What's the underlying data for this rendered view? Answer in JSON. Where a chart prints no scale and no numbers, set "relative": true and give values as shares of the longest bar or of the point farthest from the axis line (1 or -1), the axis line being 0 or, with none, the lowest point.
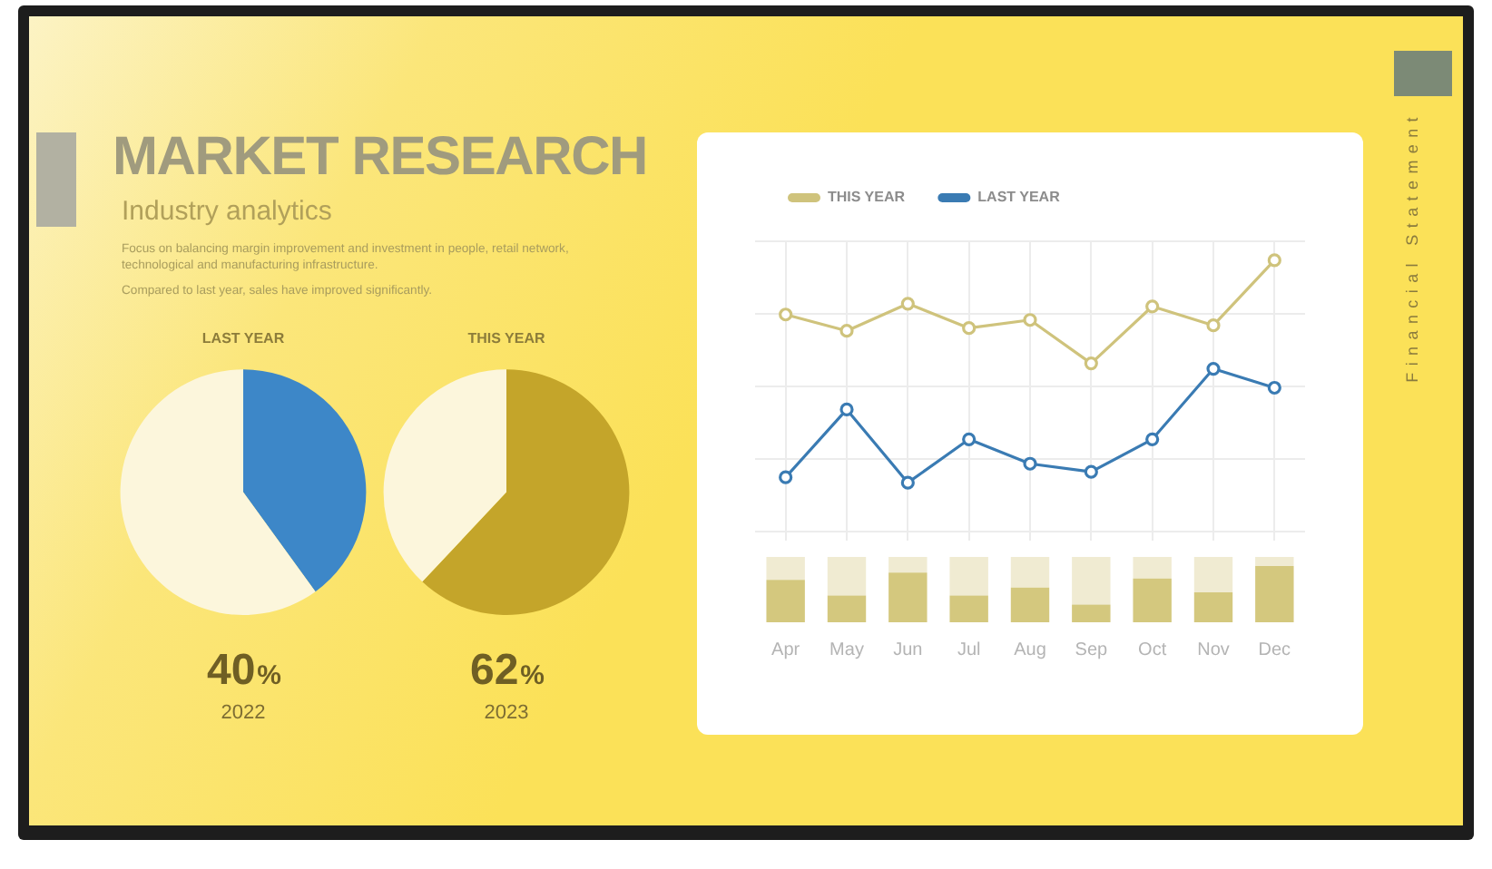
{
  "chart_data": [
    {
      "type": "other",
      "title": "MARKET RESEARCH",
      "subtitle": "Industry analytics",
      "annotations": [
        "Focus on balancing margin improvement and investment in people, retail network, technological and manufacturing infrastructure.",
        "Compared to last year, sales have improved significantly.",
        "Financial Statement"
      ]
    },
    {
      "type": "pie",
      "title": "LAST YEAR",
      "categories": [
        null,
        null
      ],
      "values": [
        40,
        60
      ],
      "colors": [
        "#3d87c8",
        "#fcf6dc"
      ],
      "annotations": [
        "40%",
        "2022"
      ]
    },
    {
      "type": "pie",
      "title": "THIS YEAR",
      "categories": [
        null,
        null
      ],
      "values": [
        62,
        38
      ],
      "colors": [
        "#c4a52a",
        "#fcf6dc"
      ],
      "annotations": [
        "62%",
        "2023"
      ]
    },
    {
      "type": "line",
      "relative": true,
      "categories": [
        null,
        null,
        null,
        null,
        null,
        null,
        null,
        null,
        null
      ],
      "grid": true,
      "legend": "top left",
      "marker": "circle",
      "series": [
        {
          "name": "THIS YEAR",
          "color": "#cfc37c",
          "values": [
            0.8,
            0.74,
            0.84,
            0.75,
            0.78,
            0.62,
            0.83,
            0.76,
            1
          ]
        },
        {
          "name": "LAST YEAR",
          "color": "#3a7bb3",
          "values": [
            0.2,
            0.45,
            0.18,
            0.34,
            0.25,
            0.22,
            0.34,
            0.6,
            0.53
          ]
        }
      ]
    },
    {
      "type": "bar",
      "relative": true,
      "stacked": true,
      "categories": [
        "Apr",
        "May",
        "Jun",
        "Jul",
        "Aug",
        "Sep",
        "Oct",
        "Nov",
        "Dec"
      ],
      "series": [
        {
          "color": "#d4c87e",
          "values": [
            0.65,
            0.41,
            0.76,
            0.41,
            0.53,
            0.27,
            0.67,
            0.46,
            0.86
          ]
        },
        {
          "color": "#f0ebd2",
          "values": [
            0.35,
            0.59,
            0.24,
            0.59,
            0.47,
            0.73,
            0.33,
            0.54,
            0.14
          ]
        }
      ]
    }
  ]
}
